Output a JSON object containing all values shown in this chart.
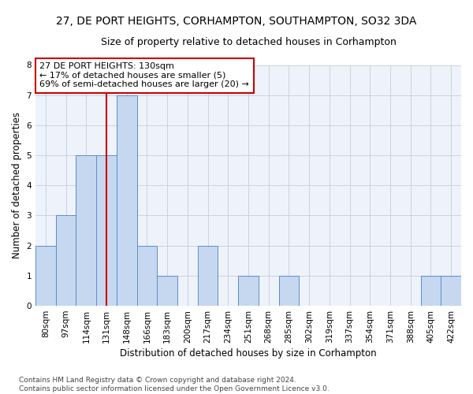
{
  "title": "27, DE PORT HEIGHTS, CORHAMPTON, SOUTHAMPTON, SO32 3DA",
  "subtitle": "Size of property relative to detached houses in Corhampton",
  "xlabel": "Distribution of detached houses by size in Corhampton",
  "ylabel": "Number of detached properties",
  "categories": [
    "80sqm",
    "97sqm",
    "114sqm",
    "131sqm",
    "148sqm",
    "166sqm",
    "183sqm",
    "200sqm",
    "217sqm",
    "234sqm",
    "251sqm",
    "268sqm",
    "285sqm",
    "302sqm",
    "319sqm",
    "337sqm",
    "354sqm",
    "371sqm",
    "388sqm",
    "405sqm",
    "422sqm"
  ],
  "values": [
    2,
    3,
    5,
    5,
    7,
    2,
    1,
    0,
    2,
    0,
    1,
    0,
    1,
    0,
    0,
    0,
    0,
    0,
    0,
    1,
    1
  ],
  "bar_color": "#c5d8f0",
  "bar_edge_color": "#5b8dc8",
  "reference_line_index": 3,
  "reference_line_color": "#cc0000",
  "annotation_line1": "27 DE PORT HEIGHTS: 130sqm",
  "annotation_line2": "← 17% of detached houses are smaller (5)",
  "annotation_line3": "69% of semi-detached houses are larger (20) →",
  "annotation_box_color": "#cc0000",
  "ylim": [
    0,
    8
  ],
  "yticks": [
    0,
    1,
    2,
    3,
    4,
    5,
    6,
    7,
    8
  ],
  "footer": "Contains HM Land Registry data © Crown copyright and database right 2024.\nContains public sector information licensed under the Open Government Licence v3.0.",
  "bg_color": "#eef2fa",
  "grid_color": "#c8ccd8",
  "title_fontsize": 10,
  "subtitle_fontsize": 9,
  "axis_label_fontsize": 8.5,
  "tick_fontsize": 7.5,
  "annotation_fontsize": 8,
  "footer_fontsize": 6.5
}
